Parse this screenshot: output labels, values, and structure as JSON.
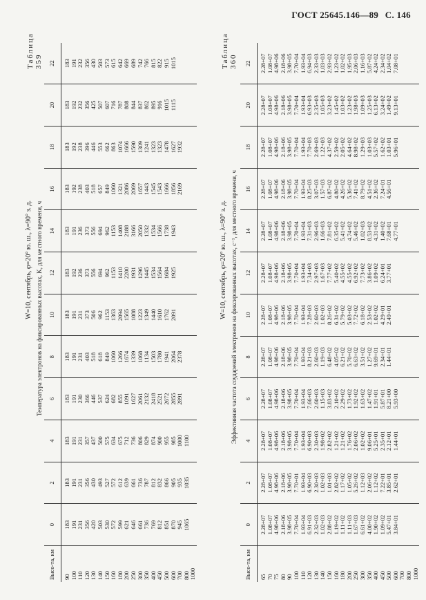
{
  "header": {
    "gost": "ГОСТ 25645.146—89",
    "page": "С. 146"
  },
  "table359": {
    "label": "Таблица 359",
    "caption": "W=10, сентябрь, φ=20° ю. ш., λ=90° з. д.",
    "subcaption": "Температура электронов на фиксированных высотах, K, для местного времени, ч",
    "stub": "Высо-та, км",
    "hours": [
      "0",
      "2",
      "4",
      "6",
      "8",
      "10",
      "12",
      "14",
      "16",
      "18",
      "20",
      "22"
    ],
    "heights": [
      "90\n100\n110\n120\n130\n140\n150\n160\n180\n200\n250\n300\n350\n400\n450\n500\n600\n700\n800\n1000"
    ],
    "cols": [
      "183\n191\n231\n356\n420\n503\n530\n572\n599\n621\n646\n661\n736\n769\n812\n851\n870\n945\n1065",
      "183\n191\n231\n356\n430\n493\n527\n572\n612\n639\n661\n736\n787\n812\n832\n866\n905\n935\n1035",
      "183\n191\n231\n357\n437\n500\n575\n634\n675\n712\n736\n806\n829\n874\n900\n955\n985\n1000\n1100",
      "183\n191\n230\n366\n446\n537\n624\n682\n855\n1091\n1627\n2061\n2132\n2418\n2521\n2672\n2855\n2891",
      "183\n191\n231\n403\n518\n618\n849\n1060\n1266\n1674\n1339\n1068\n1134\n1503\n1780\n1941\n2064\n2378",
      "183\n191\n231\n373\n506\n962\n1153\n1363\n2094\n1565\n1088\n1223\n1349\n1440\n1610\n1762\n2091",
      "183\n192\n236\n373\n556\n694\n962\n1153\n1410\n2200\n1931\n1296\n1445\n1534\n1564\n1684\n1925",
      "183\n191\n236\n373\n556\n694\n962\n1153\n1408\n2188\n3166\n2050\n1332\n1534\n1566\n1738\n1943",
      "183\n192\n238\n403\n518\n657\n849\n1060\n1321\n2086\n2069\n1657\n1443\n1545\n1543\n1666\n1856\n2169",
      "183\n192\n238\n396\n446\n553\n662\n863\n1074\n1666\n1590\n1309\n1241\n1323\n1323\n1478\n1627\n1932",
      "183\n192\n232\n356\n425\n507\n607\n716\n787\n808\n844\n837\n862\n895\n916\n1015\n1115",
      "183\n191\n232\n356\n430\n503\n573\n615\n642\n669\n689\n742\n766\n815\n822\n915\n1015"
    ]
  },
  "table360": {
    "label": "Таблица 360",
    "caption": "W=10, сентябрь, φ=20° ю. ш., λ=90° з. д.",
    "subcaption": "Эффективная частота соударений электронов на фиксированных высотах, с⁻¹, для местного времени, ч",
    "stub": "Высо-та, км",
    "hours": [
      "0",
      "2",
      "4",
      "6",
      "8",
      "10",
      "12",
      "14",
      "16",
      "18",
      "20",
      "22"
    ],
    "heights": [
      "65\n70\n75\n80\n90\n100\n110\n120\n130\n140\n150\n160\n180\n200\n250\n300\n350\n400\n450\n500\n600\n700\n800\n1000"
    ],
    "cols": [
      "2.28+07\n1.08+07\n4.98+06\n2.18+06\n3.98+05\n7.70+04\n1.93+04\n6.91+03\n2.32+03\n1.02+03\n2.88+02\n1.19+02\n1.11+02\n1.11+03\n1.67+03\n6.61+02\n4.00+02\n1.90+02\n1.09+02\n5.47+01\n3.84+01",
      "2.28+07\n1.08+07\n4.98+06\n2.18+06\n3.98+05\n7.70+01\n1.93+04\n6.90+03\n2.30+03\n1.02+03\n1.01+03\n2.82+02\n1.17+02\n1.05+02\n5.26+02\n1.12+03\n2.06+02\n1.12+02\n7.22+01\n3.85+01\n2.62+01",
      "2.28+07\n1.08+07\n4.98+06\n2.18+06\n3.98+05\n7.70+04\n1.93+04\n6.90+03\n2.30+03\n1.98+02\n2.82+02\n1.21+02\n1.21+02\n1.76+02\n2.06+02\n1.02+02\n9.06+01\n5.25+01\n2.35+01\n2.12+01\n1.44+01",
      "2.28+07\n1.08+07\n4.98+06\n2.18+06\n3.98+05\n7.70+04\n1.93+04\n7.66+03\n2.60+03\n1.15+03\n3.83+02\n2.10+02\n2.29+02\n1.73+02\n1.92+02\n1.63+02\n1.47+02\n1.91+01\n5.87+01\n8.21+00\n5.93+00",
      "2.28+07\n1.08+07\n4.98+06\n2.18+06\n3.98+05\n7.70+04\n1.93+04\n8.21+03\n2.60+03\n1.19+03\n6.48+02\n4.05+02\n6.21+02\n5.70+02\n6.63+02\n3.51+02\n1.27+02\n9.69+01\n2.34+01\n1.44+01",
      "2.28+07\n1.08+07\n4.98+06\n2.18+06\n3.98+05\n7.70+04\n1.93+04\n7.28+03\n2.60+03\n1.02+03\n8.26+02\n6.31+02\n5.79+02\n5.03+02\n7.72+02\n6.18+02\n2.53+02\n1.02+02\n4.29+01\n2.49+01",
      "2.28+07\n1.08+07\n4.98+06\n2.18+06\n3.98+05\n7.70+04\n1.93+04\n7.34+03\n2.97+03\n1.67+03\n7.77+02\n5.40+02\n4.55+02\n4.55+02\n6.92+02\n7.73+02\n3.86+02\n1.09+02\n6.24+01\n3.77+01",
      "2.28+07\n1.08+07\n4.98+06\n2.18+06\n3.98+05\n7.70+04\n1.93+04\n7.31+03\n2.96+03\n1.66+03\n7.81+02\n6.35+02\n5.41+02\n4.74+02\n5.46+02\n1.02+03\n8.53+02\n4.31+02\n1.40+02\n7.68+01\n4.77+01",
      "2.28+07\n1.08+07\n4.98+06\n2.18+06\n3.98+05\n7.70+04\n1.93+04\n8.25+03\n3.07+03\n1.57+03\n6.87+02\n4.80+02\n4.26+02\n5.36+02\n7.41+02\n8.79+02\n4.51+02\n2.36+02\n7.24+01\n4.56+01",
      "2.28+07\n1.08+07\n4.98+06\n2.18+06\n3.98+05\n7.70+04\n1.93+04\n7.70+03\n2.69+03\n1.22+03\n4.37+02\n2.59+02\n2.05+02\n4.64+02\n8.98+02\n1.29+03\n1.03+03\n5.57+02\n1.62+02\n1.03+01\n5.96+01",
      "2.28+07\n1.08+07\n4.98+06\n2.18+06\n3.98+05\n7.70+04\n1.93+04\n6.93+03\n2.35+03\n1.05+03\n3.23+02\n1.45+02\n1.03+02\n1.23+02\n1.98+03\n1.09+03\n1.25+03\n6.13+02\n3.24+02\n1.49+02\n9.13+01",
      "2.28+07\n1.08+07\n4.98+06\n2.18+06\n3.98+05\n7.70+04\n1.93+04\n6.94+03\n2.33+03\n1.03+03\n2.93+02\n1.23+02\n1.02+02\n1.95+03\n2.06+03\n1.16+03\n5.87+02\n4.24+02\n2.34+02\n1.04+02\n7.08+01"
    ]
  }
}
